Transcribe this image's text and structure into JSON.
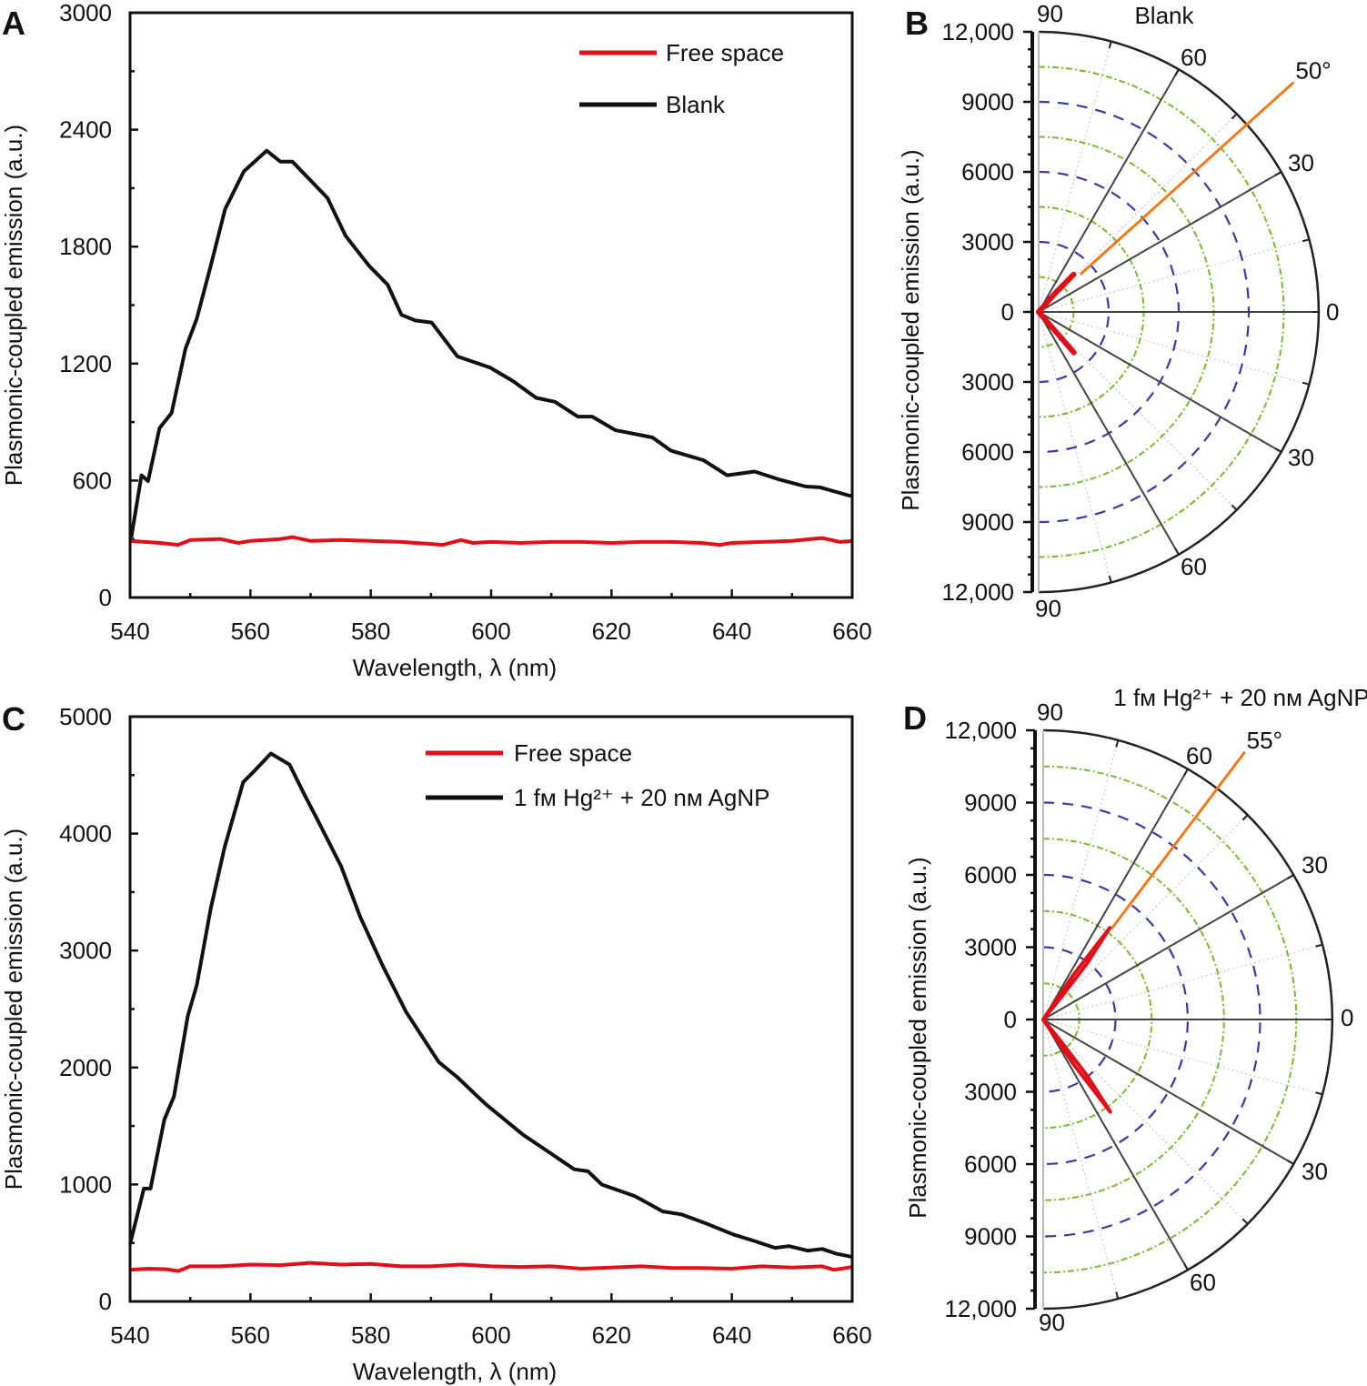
{
  "colors": {
    "free_space": "#e0101a",
    "sample": "#111111",
    "marker": "#f07a1a",
    "ring_major": "#3a3aa0",
    "ring_minor": "#7ab830",
    "spoke": "#444444"
  },
  "chart_data": [
    {
      "panel": "A",
      "type": "line",
      "xlabel": "Wavelength, λ (nm)",
      "ylabel": "Plasmonic-coupled emission (a.u.)",
      "xlim": [
        540,
        660
      ],
      "ylim": [
        0,
        3000
      ],
      "xticks": [
        "540",
        "560",
        "580",
        "600",
        "620",
        "640",
        "660"
      ],
      "yticks": [
        "0",
        "600",
        "1200",
        "1800",
        "2400",
        "3000"
      ],
      "legend_position": "top-right",
      "series": [
        {
          "name": "Free space",
          "color": "#e0101a",
          "x": [
            540,
            545,
            548,
            550,
            555,
            558,
            560,
            565,
            567,
            570,
            575,
            580,
            585,
            590,
            592,
            595,
            597,
            600,
            605,
            610,
            615,
            620,
            625,
            630,
            635,
            638,
            640,
            645,
            650,
            655,
            658,
            660
          ],
          "y": [
            290,
            280,
            270,
            295,
            300,
            280,
            290,
            300,
            310,
            290,
            295,
            290,
            285,
            275,
            270,
            295,
            280,
            285,
            280,
            285,
            285,
            280,
            285,
            285,
            280,
            270,
            280,
            285,
            290,
            305,
            285,
            290
          ]
        },
        {
          "name": "Blank",
          "color": "#111111",
          "x": [
            540.2,
            541.9,
            543,
            544.9,
            546.9,
            549.2,
            551.1,
            553.4,
            555.8,
            558.9,
            562.7,
            565,
            567,
            572.8,
            575.8,
            579.7,
            582.8,
            585.1,
            587.4,
            590.1,
            594.4,
            599.8,
            603.6,
            607.5,
            610.6,
            614.4,
            616.8,
            620.6,
            626.8,
            629.9,
            635.3,
            639.2,
            643.8,
            647.7,
            652.3,
            654.7,
            659.8
          ],
          "y": [
            308,
            627,
            597,
            869,
            947,
            1276,
            1431,
            1702,
            1992,
            2186,
            2292,
            2236,
            2236,
            2050,
            1856,
            1702,
            1605,
            1450,
            1421,
            1411,
            1237,
            1180,
            1111,
            1024,
            1004,
            928,
            928,
            859,
            821,
            753,
            704,
            627,
            646,
            607,
            569,
            565,
            520
          ]
        }
      ]
    },
    {
      "panel": "B",
      "type": "line",
      "projection": "polar-half",
      "title": "Blank",
      "ylabel": "Plasmonic-coupled emission (a.u.)",
      "rlim": [
        0,
        12000
      ],
      "rticks": [
        "12,000",
        "9000",
        "6000",
        "3000",
        "0",
        "3000",
        "6000",
        "9000",
        "12,000"
      ],
      "angle_labels": [
        "90",
        "60",
        "30",
        "0",
        "30",
        "60",
        "90"
      ],
      "marker": {
        "label": "50°",
        "angle": 42,
        "r_start": 2400,
        "r_end": 14700
      },
      "lobes": [
        [
          [
            50,
            0
          ],
          [
            48.5,
            1100
          ],
          [
            47,
            2200
          ]
        ],
        [
          [
            -50,
            0
          ],
          [
            -49,
            1100
          ],
          [
            -49,
            2300
          ]
        ]
      ]
    },
    {
      "panel": "C",
      "type": "line",
      "xlabel": "Wavelength, λ (nm)",
      "ylabel": "Plasmonic-coupled emission (a.u.)",
      "xlim": [
        540,
        660
      ],
      "ylim": [
        0,
        5000
      ],
      "xticks": [
        "540",
        "560",
        "580",
        "600",
        "620",
        "640",
        "660"
      ],
      "yticks": [
        "0",
        "1000",
        "2000",
        "3000",
        "4000",
        "5000"
      ],
      "legend_position": "top-right",
      "series": [
        {
          "name": "Free space",
          "color": "#e0101a",
          "x": [
            540,
            543,
            546,
            548,
            550,
            555,
            560,
            565,
            570,
            575,
            580,
            585,
            590,
            595,
            600,
            605,
            610,
            615,
            620,
            625,
            630,
            635,
            640,
            645,
            650,
            655,
            657,
            660
          ],
          "y": [
            270,
            280,
            275,
            260,
            300,
            300,
            315,
            310,
            330,
            315,
            320,
            300,
            300,
            315,
            300,
            295,
            300,
            280,
            290,
            300,
            285,
            285,
            280,
            300,
            290,
            300,
            270,
            295
          ]
        },
        {
          "name": "1 fᴍ Hg²⁺ + 20 nᴍ AgNP",
          "color": "#111111",
          "x": [
            540,
            542.3,
            543.4,
            545.7,
            547.3,
            549.6,
            551.1,
            553.4,
            555.7,
            558.8,
            560.7,
            563.4,
            566.5,
            568.9,
            571.2,
            575.1,
            578.2,
            582,
            585.9,
            591.3,
            594.4,
            599.1,
            605.3,
            609.1,
            613.8,
            616.1,
            618.4,
            623.9,
            628.5,
            631.6,
            635.5,
            640.2,
            643.3,
            647.2,
            649.5,
            652.6,
            655,
            657.3,
            660
          ],
          "y": [
            490,
            965,
            965,
            1555,
            1753,
            2442,
            2706,
            3359,
            3882,
            4440,
            4538,
            4685,
            4590,
            4341,
            4113,
            3718,
            3292,
            2868,
            2473,
            2047,
            1917,
            1687,
            1425,
            1294,
            1130,
            1113,
            999,
            900,
            770,
            744,
            671,
            573,
            524,
            458,
            473,
            434,
            449,
            409,
            380
          ]
        }
      ]
    },
    {
      "panel": "D",
      "type": "line",
      "projection": "polar-half",
      "title": "1 fᴍ Hg²⁺ + 20 nᴍ AgNP",
      "ylabel": "Plasmonic-coupled emission (a.u.)",
      "rlim": [
        0,
        12000
      ],
      "rticks": [
        "12,000",
        "9000",
        "6000",
        "3000",
        "0",
        "3000",
        "6000",
        "9000",
        "12,000"
      ],
      "angle_labels": [
        "90",
        "60",
        "30",
        "0",
        "30",
        "60",
        "90"
      ],
      "marker": {
        "label": "55°",
        "angle": 53,
        "r_start": 4700,
        "r_end": 13900
      },
      "lobes": [
        [
          [
            57,
            0
          ],
          [
            56,
            2200
          ],
          [
            54,
            4700
          ],
          [
            52,
            3000
          ],
          [
            51,
            1200
          ],
          [
            52,
            0
          ]
        ],
        [
          [
            -57,
            0
          ],
          [
            -56,
            2200
          ],
          [
            -54,
            4740
          ],
          [
            -52,
            3000
          ],
          [
            -51,
            1200
          ],
          [
            -52,
            0
          ]
        ]
      ]
    }
  ]
}
